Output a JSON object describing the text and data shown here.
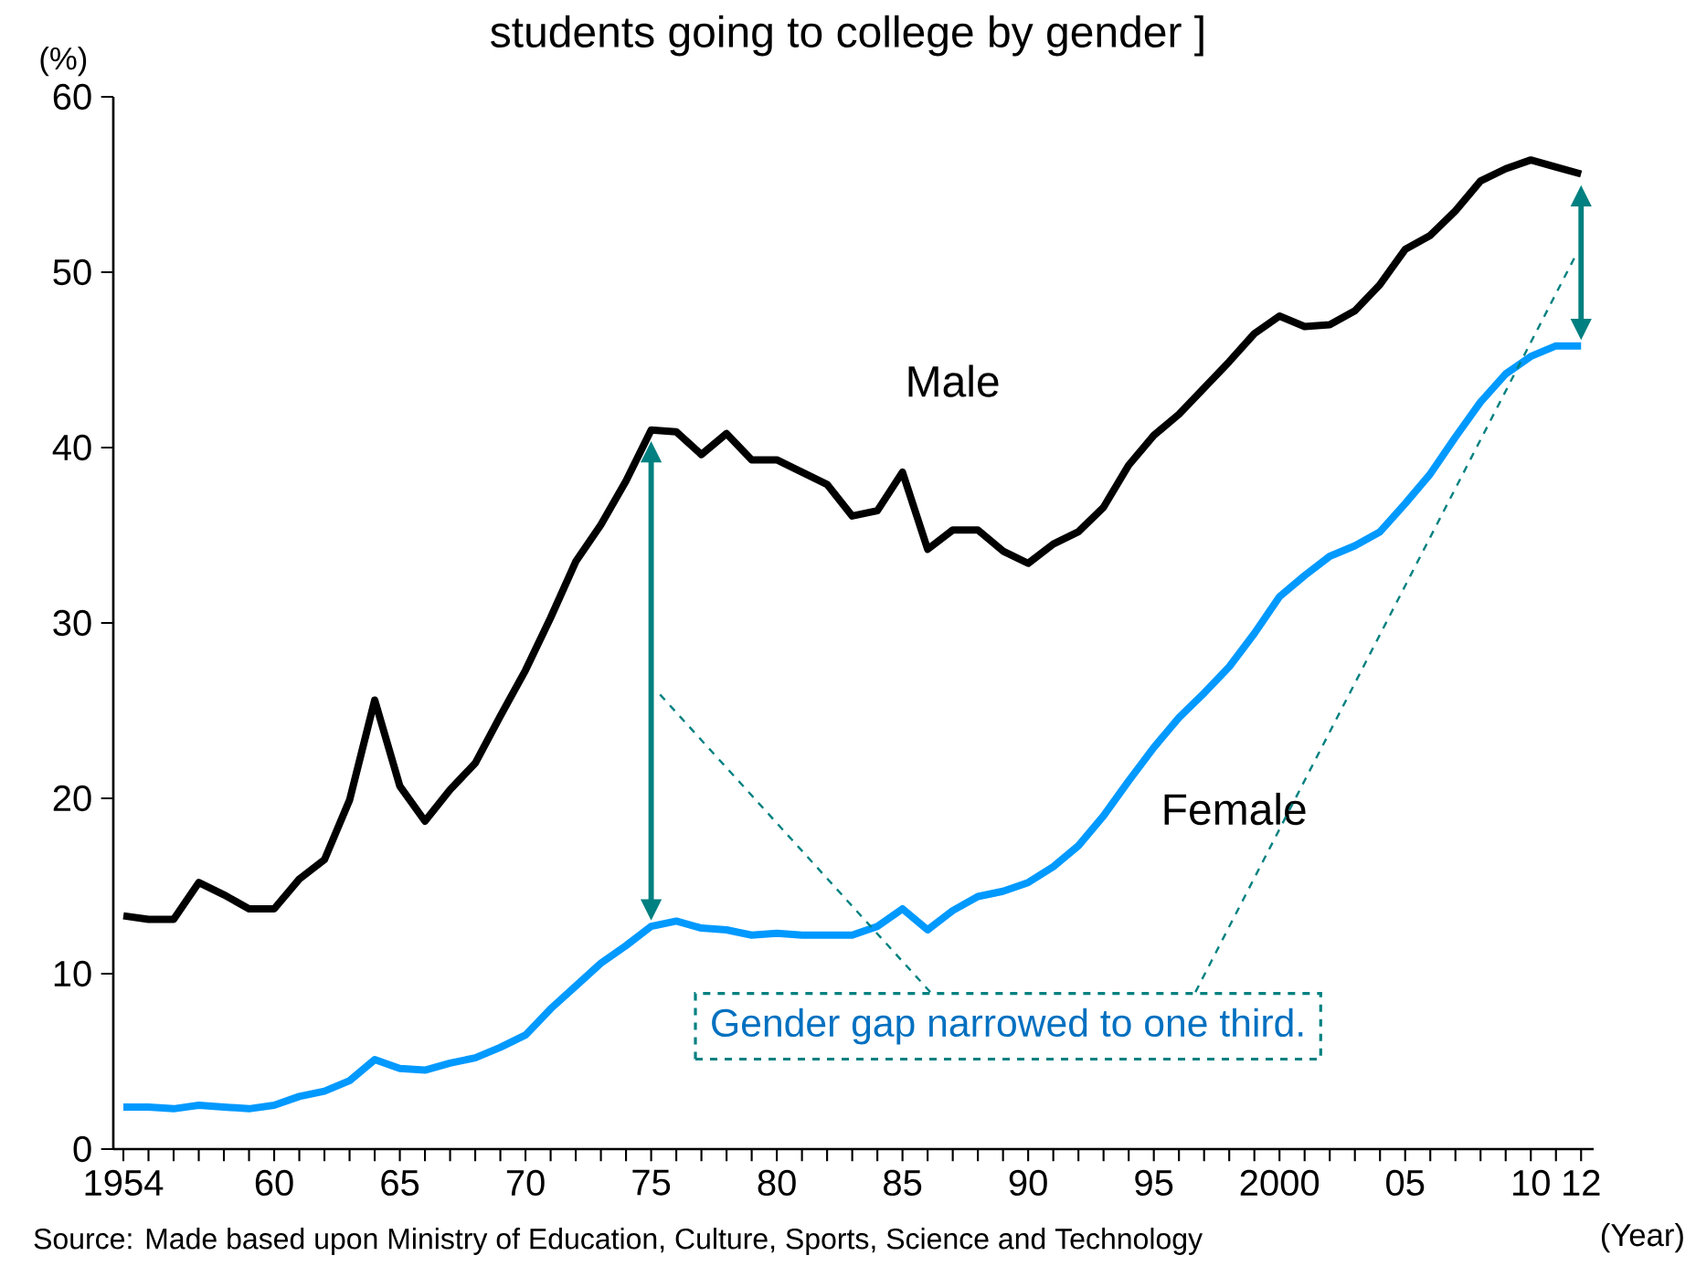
{
  "chart_data": {
    "type": "line",
    "title": "students going to college by gender ]",
    "ylabel": "(%)",
    "xlabel": "(Year)",
    "annotations": [
      "Gender gap narrowed to one third.",
      "Source: Made based upon Ministry of Education, Culture, Sports, Science and Technology"
    ],
    "x": [
      1954,
      1955,
      1956,
      1957,
      1958,
      1959,
      1960,
      1961,
      1962,
      1963,
      1964,
      1965,
      1966,
      1967,
      1968,
      1969,
      1970,
      1971,
      1972,
      1973,
      1974,
      1975,
      1976,
      1977,
      1978,
      1979,
      1980,
      1981,
      1982,
      1983,
      1984,
      1985,
      1986,
      1987,
      1988,
      1989,
      1990,
      1991,
      1992,
      1993,
      1994,
      1995,
      1996,
      1997,
      1998,
      1999,
      2000,
      2001,
      2002,
      2003,
      2004,
      2005,
      2006,
      2007,
      2008,
      2009,
      2010,
      2011,
      2012
    ],
    "series": [
      {
        "name": "Male",
        "color": "#000000",
        "values": [
          13.3,
          13.1,
          13.1,
          15.2,
          14.5,
          13.7,
          13.7,
          15.4,
          16.5,
          19.9,
          25.6,
          20.7,
          18.7,
          20.5,
          22.0,
          24.7,
          27.3,
          30.3,
          33.5,
          35.6,
          38.1,
          41.0,
          40.9,
          39.6,
          40.8,
          39.3,
          39.3,
          38.6,
          37.9,
          36.1,
          36.4,
          38.6,
          34.2,
          35.3,
          35.3,
          34.1,
          33.4,
          34.5,
          35.2,
          36.6,
          39.0,
          40.7,
          41.9,
          43.4,
          44.9,
          46.5,
          47.5,
          46.9,
          47.0,
          47.8,
          49.3,
          51.3,
          52.1,
          53.5,
          55.2,
          55.9,
          56.4,
          56.0,
          55.6
        ]
      },
      {
        "name": "Female",
        "color": "#0099ff",
        "values": [
          2.4,
          2.4,
          2.3,
          2.5,
          2.4,
          2.3,
          2.5,
          3.0,
          3.3,
          3.9,
          5.1,
          4.6,
          4.5,
          4.9,
          5.2,
          5.8,
          6.5,
          8.0,
          9.3,
          10.6,
          11.6,
          12.7,
          13.0,
          12.6,
          12.5,
          12.2,
          12.3,
          12.2,
          12.2,
          12.2,
          12.7,
          13.7,
          12.5,
          13.6,
          14.4,
          14.7,
          15.2,
          16.1,
          17.3,
          19.0,
          21.0,
          22.9,
          24.6,
          26.0,
          27.5,
          29.4,
          31.5,
          32.7,
          33.8,
          34.4,
          35.2,
          36.8,
          38.5,
          40.6,
          42.6,
          44.2,
          45.2,
          45.8,
          45.8
        ]
      }
    ],
    "xlim": [
      1953.6,
      2012.5
    ],
    "xticks": [
      1954,
      {
        "value": 1955,
        "label": null
      },
      {
        "value": 1956,
        "label": null
      },
      {
        "value": 1957,
        "label": null
      },
      {
        "value": 1958,
        "label": null
      },
      {
        "value": 1959,
        "label": null
      },
      {
        "value": 1960,
        "label": "60"
      },
      {
        "value": 1961,
        "label": null
      },
      {
        "value": 1962,
        "label": null
      },
      {
        "value": 1963,
        "label": null
      },
      {
        "value": 1964,
        "label": null
      },
      {
        "value": 1965,
        "label": "65"
      },
      {
        "value": 1966,
        "label": null
      },
      {
        "value": 1967,
        "label": null
      },
      {
        "value": 1968,
        "label": null
      },
      {
        "value": 1969,
        "label": null
      },
      {
        "value": 1970,
        "label": "70"
      },
      {
        "value": 1971,
        "label": null
      },
      {
        "value": 1972,
        "label": null
      },
      {
        "value": 1973,
        "label": null
      },
      {
        "value": 1974,
        "label": null
      },
      {
        "value": 1975,
        "label": "75"
      },
      {
        "value": 1976,
        "label": null
      },
      {
        "value": 1977,
        "label": null
      },
      {
        "value": 1978,
        "label": null
      },
      {
        "value": 1979,
        "label": null
      },
      {
        "value": 1980,
        "label": "80"
      },
      {
        "value": 1981,
        "label": null
      },
      {
        "value": 1982,
        "label": null
      },
      {
        "value": 1983,
        "label": null
      },
      {
        "value": 1984,
        "label": null
      },
      {
        "value": 1985,
        "label": "85"
      },
      {
        "value": 1986,
        "label": null
      },
      {
        "value": 1987,
        "label": null
      },
      {
        "value": 1988,
        "label": null
      },
      {
        "value": 1989,
        "label": null
      },
      {
        "value": 1990,
        "label": "90"
      },
      {
        "value": 1991,
        "label": null
      },
      {
        "value": 1992,
        "label": null
      },
      {
        "value": 1993,
        "label": null
      },
      {
        "value": 1994,
        "label": null
      },
      {
        "value": 1995,
        "label": "95"
      },
      {
        "value": 1996,
        "label": null
      },
      {
        "value": 1997,
        "label": null
      },
      {
        "value": 1998,
        "label": null
      },
      {
        "value": 1999,
        "label": null
      },
      2000,
      {
        "value": 2001,
        "label": null
      },
      {
        "value": 2002,
        "label": null
      },
      {
        "value": 2003,
        "label": null
      },
      {
        "value": 2004,
        "label": null
      },
      {
        "value": 2005,
        "label": "05"
      },
      {
        "value": 2006,
        "label": null
      },
      {
        "value": 2007,
        "label": null
      },
      {
        "value": 2008,
        "label": null
      },
      {
        "value": 2009,
        "label": null
      },
      {
        "value": 2010,
        "label": "10"
      },
      {
        "value": 2011,
        "label": null
      },
      {
        "value": 2012,
        "label": "12"
      }
    ],
    "ylim": [
      0,
      60
    ],
    "yticks": [
      0,
      10,
      20,
      30,
      40,
      50,
      60
    ],
    "grid": false,
    "legend": false,
    "marker": "none",
    "line_style": "solid"
  }
}
